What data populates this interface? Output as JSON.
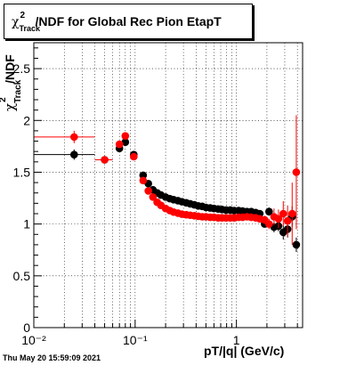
{
  "title": {
    "symbol": "χ",
    "sup": "2",
    "sub": "Track",
    "rest": "/NDF for Global Rec Pion EtapT"
  },
  "ylabel": {
    "symbol": "χ",
    "sup": "2",
    "sub": "Track",
    "rest": "/NDF"
  },
  "xlabel": "pT/|q| (GeV/c)",
  "datestamp": "Thu May 20 15:59:09 2021",
  "colors": {
    "series_black": "#000000",
    "series_red": "#ff0000"
  },
  "chart_data": {
    "type": "scatter",
    "x_scale": "log",
    "xlim": [
      0.01,
      4.5
    ],
    "ylim": [
      0,
      2.75
    ],
    "grid": true,
    "x_ticks": [
      {
        "value": 0.01,
        "label": "10⁻²"
      },
      {
        "value": 0.1,
        "label": "10⁻¹"
      },
      {
        "value": 1,
        "label": "1"
      }
    ],
    "y_ticks": [
      {
        "value": 0,
        "label": "0"
      },
      {
        "value": 0.5,
        "label": "0.5"
      },
      {
        "value": 1,
        "label": "1"
      },
      {
        "value": 1.5,
        "label": "1.5"
      },
      {
        "value": 2,
        "label": "2"
      },
      {
        "value": 2.5,
        "label": "2.5"
      }
    ],
    "series": [
      {
        "color": "#000000",
        "points": [
          {
            "x": 0.025,
            "y": 1.67,
            "xlo": 0.01,
            "xhi": 0.04,
            "err": 0.05
          },
          {
            "x": 0.05,
            "y": 1.62,
            "xlo": 0.04,
            "xhi": 0.06,
            "err": 0.03
          },
          {
            "x": 0.07,
            "y": 1.73,
            "xlo": 0.065,
            "xhi": 0.075,
            "err": 0.03
          },
          {
            "x": 0.08,
            "y": 1.79,
            "xlo": 0.075,
            "xhi": 0.085,
            "err": 0.03
          },
          {
            "x": 0.097,
            "y": 1.67,
            "xlo": 0.09,
            "xhi": 0.105,
            "err": 0.03
          },
          {
            "x": 0.12,
            "y": 1.47,
            "err": 0.02
          },
          {
            "x": 0.135,
            "y": 1.39,
            "err": 0.02
          },
          {
            "x": 0.15,
            "y": 1.33,
            "err": 0.02
          },
          {
            "x": 0.165,
            "y": 1.3
          },
          {
            "x": 0.18,
            "y": 1.28
          },
          {
            "x": 0.2,
            "y": 1.26
          },
          {
            "x": 0.22,
            "y": 1.245
          },
          {
            "x": 0.24,
            "y": 1.235
          },
          {
            "x": 0.265,
            "y": 1.225
          },
          {
            "x": 0.29,
            "y": 1.215
          },
          {
            "x": 0.32,
            "y": 1.205
          },
          {
            "x": 0.35,
            "y": 1.195
          },
          {
            "x": 0.385,
            "y": 1.185
          },
          {
            "x": 0.42,
            "y": 1.175
          },
          {
            "x": 0.46,
            "y": 1.17
          },
          {
            "x": 0.5,
            "y": 1.16
          },
          {
            "x": 0.55,
            "y": 1.155
          },
          {
            "x": 0.6,
            "y": 1.15
          },
          {
            "x": 0.66,
            "y": 1.145
          },
          {
            "x": 0.72,
            "y": 1.14
          },
          {
            "x": 0.79,
            "y": 1.135
          },
          {
            "x": 0.87,
            "y": 1.135
          },
          {
            "x": 0.95,
            "y": 1.13
          },
          {
            "x": 1.05,
            "y": 1.13
          },
          {
            "x": 1.15,
            "y": 1.125
          },
          {
            "x": 1.27,
            "y": 1.12
          },
          {
            "x": 1.4,
            "y": 1.12
          },
          {
            "x": 1.55,
            "y": 1.11
          },
          {
            "x": 1.7,
            "y": 1.1
          },
          {
            "x": 1.9,
            "y": 1.0,
            "err": 0.03
          },
          {
            "x": 2.1,
            "y": 1.12,
            "err": 0.04
          },
          {
            "x": 2.35,
            "y": 0.97,
            "err": 0.05
          },
          {
            "x": 2.6,
            "y": 0.98,
            "err": 0.05
          },
          {
            "x": 2.9,
            "y": 0.92,
            "err": 0.07
          },
          {
            "x": 3.2,
            "y": 0.95,
            "err": 0.08
          },
          {
            "x": 3.55,
            "y": 1.07,
            "err": 0.1
          },
          {
            "x": 3.9,
            "y": 0.8,
            "err": 0.07
          }
        ]
      },
      {
        "color": "#ff0000",
        "points": [
          {
            "x": 0.025,
            "y": 1.84,
            "xlo": 0.01,
            "xhi": 0.04,
            "err": 0.06
          },
          {
            "x": 0.05,
            "y": 1.62,
            "xlo": 0.04,
            "xhi": 0.06,
            "err": 0.03
          },
          {
            "x": 0.07,
            "y": 1.77,
            "xlo": 0.065,
            "xhi": 0.075,
            "err": 0.03
          },
          {
            "x": 0.08,
            "y": 1.85,
            "xlo": 0.075,
            "xhi": 0.085,
            "err": 0.03
          },
          {
            "x": 0.097,
            "y": 1.65,
            "xlo": 0.09,
            "xhi": 0.105,
            "err": 0.03
          },
          {
            "x": 0.12,
            "y": 1.42,
            "err": 0.02
          },
          {
            "x": 0.135,
            "y": 1.32,
            "err": 0.02
          },
          {
            "x": 0.15,
            "y": 1.26,
            "err": 0.02
          },
          {
            "x": 0.165,
            "y": 1.21
          },
          {
            "x": 0.18,
            "y": 1.18
          },
          {
            "x": 0.2,
            "y": 1.15
          },
          {
            "x": 0.22,
            "y": 1.13
          },
          {
            "x": 0.24,
            "y": 1.115
          },
          {
            "x": 0.265,
            "y": 1.105
          },
          {
            "x": 0.29,
            "y": 1.095
          },
          {
            "x": 0.32,
            "y": 1.09
          },
          {
            "x": 0.35,
            "y": 1.085
          },
          {
            "x": 0.385,
            "y": 1.08
          },
          {
            "x": 0.42,
            "y": 1.075
          },
          {
            "x": 0.46,
            "y": 1.07
          },
          {
            "x": 0.5,
            "y": 1.07
          },
          {
            "x": 0.55,
            "y": 1.065
          },
          {
            "x": 0.6,
            "y": 1.065
          },
          {
            "x": 0.66,
            "y": 1.06
          },
          {
            "x": 0.72,
            "y": 1.06
          },
          {
            "x": 0.79,
            "y": 1.06
          },
          {
            "x": 0.87,
            "y": 1.06
          },
          {
            "x": 0.95,
            "y": 1.06
          },
          {
            "x": 1.05,
            "y": 1.065
          },
          {
            "x": 1.15,
            "y": 1.065
          },
          {
            "x": 1.27,
            "y": 1.07
          },
          {
            "x": 1.4,
            "y": 1.065
          },
          {
            "x": 1.55,
            "y": 1.06
          },
          {
            "x": 1.7,
            "y": 1.05
          },
          {
            "x": 1.9,
            "y": 1.04,
            "err": 0.04
          },
          {
            "x": 2.1,
            "y": 1.0,
            "err": 0.05
          },
          {
            "x": 2.35,
            "y": 1.07,
            "err": 0.08
          },
          {
            "x": 2.6,
            "y": 1.05,
            "err": 0.09
          },
          {
            "x": 2.9,
            "y": 1.1,
            "err": 0.12
          },
          {
            "x": 3.2,
            "y": 1.03,
            "err": 0.15
          },
          {
            "x": 3.55,
            "y": 1.1,
            "err": 0.3
          },
          {
            "x": 3.9,
            "y": 1.5,
            "err": 0.55
          }
        ]
      }
    ]
  }
}
